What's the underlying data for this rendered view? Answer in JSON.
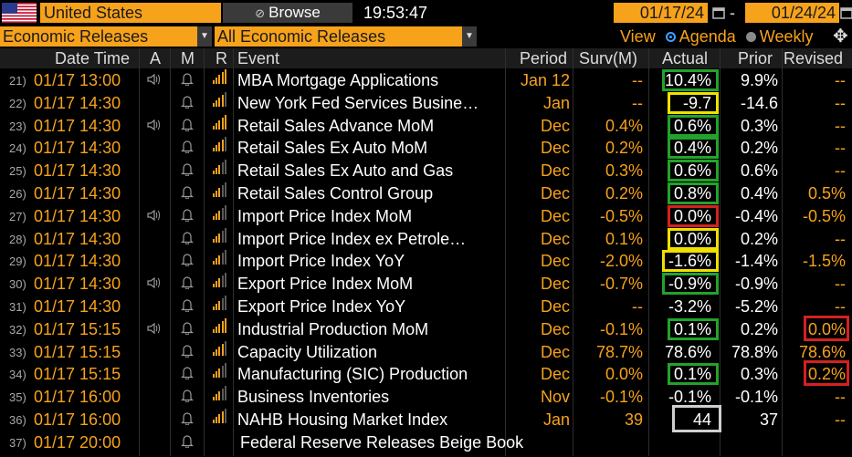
{
  "header": {
    "country": "United States",
    "browse_label": "Browse",
    "time": "19:53:47",
    "date_from": "01/17/24",
    "date_to": "01/24/24",
    "dash": "-",
    "filter_1": "Economic Releases",
    "filter_2": "All Economic Releases",
    "view_label": "View",
    "view_agenda": "Agenda",
    "view_weekly": "Weekly",
    "selected_view": "Agenda"
  },
  "columns": {
    "datetime": "Date Time",
    "a": "A",
    "m": "M",
    "r": "R",
    "event": "Event",
    "period": "Period",
    "survey": "Surv(M)",
    "actual": "Actual",
    "prior": "Prior",
    "revised": "Revised"
  },
  "colors": {
    "accent_orange": "#f7a21b",
    "box_green": "#21a32b",
    "box_yellow": "#f0e000",
    "box_red": "#d62020",
    "box_white": "#cfcfcf"
  },
  "rows": [
    {
      "num": "21)",
      "datetime": "01/17 13:00",
      "alert": true,
      "bars": 5,
      "event": "MBA Mortgage Applications",
      "period": "Jan 12",
      "survey": "--",
      "actual": "10.4%",
      "prior": "9.9%",
      "revised": "--",
      "actual_box": "green",
      "revised_box": ""
    },
    {
      "num": "22)",
      "datetime": "01/17 14:30",
      "alert": false,
      "bars": 4,
      "event": "New York Fed Services Busine…",
      "period": "Jan",
      "survey": "--",
      "actual": "-9.7",
      "prior": "-14.6",
      "revised": "--",
      "actual_box": "yellow",
      "revised_box": ""
    },
    {
      "num": "23)",
      "datetime": "01/17 14:30",
      "alert": true,
      "bars": 5,
      "event": "Retail Sales Advance MoM",
      "period": "Dec",
      "survey": "0.4%",
      "actual": "0.6%",
      "prior": "0.3%",
      "revised": "--",
      "actual_box": "green",
      "revised_box": ""
    },
    {
      "num": "24)",
      "datetime": "01/17 14:30",
      "alert": false,
      "bars": 4,
      "event": "Retail Sales Ex Auto MoM",
      "period": "Dec",
      "survey": "0.2%",
      "actual": "0.4%",
      "prior": "0.2%",
      "revised": "--",
      "actual_box": "green",
      "revised_box": ""
    },
    {
      "num": "25)",
      "datetime": "01/17 14:30",
      "alert": false,
      "bars": 3,
      "event": "Retail Sales Ex Auto and Gas",
      "period": "Dec",
      "survey": "0.3%",
      "actual": "0.6%",
      "prior": "0.6%",
      "revised": "--",
      "actual_box": "green",
      "revised_box": ""
    },
    {
      "num": "26)",
      "datetime": "01/17 14:30",
      "alert": false,
      "bars": 3,
      "event": "Retail Sales Control Group",
      "period": "Dec",
      "survey": "0.2%",
      "actual": "0.8%",
      "prior": "0.4%",
      "revised": "0.5%",
      "actual_box": "green",
      "revised_box": ""
    },
    {
      "num": "27)",
      "datetime": "01/17 14:30",
      "alert": true,
      "bars": 3,
      "event": "Import Price Index MoM",
      "period": "Dec",
      "survey": "-0.5%",
      "actual": "0.0%",
      "prior": "-0.4%",
      "revised": "-0.5%",
      "actual_box": "red",
      "revised_box": ""
    },
    {
      "num": "28)",
      "datetime": "01/17 14:30",
      "alert": false,
      "bars": 3,
      "event": "Import Price Index ex Petrole…",
      "period": "Dec",
      "survey": "0.1%",
      "actual": "0.0%",
      "prior": "0.2%",
      "revised": "--",
      "actual_box": "yellow",
      "revised_box": ""
    },
    {
      "num": "29)",
      "datetime": "01/17 14:30",
      "alert": false,
      "bars": 3,
      "event": "Import Price Index YoY",
      "period": "Dec",
      "survey": "-2.0%",
      "actual": "-1.6%",
      "prior": "-1.4%",
      "revised": "-1.5%",
      "actual_box": "yellow",
      "revised_box": ""
    },
    {
      "num": "30)",
      "datetime": "01/17 14:30",
      "alert": true,
      "bars": 3,
      "event": "Export Price Index MoM",
      "period": "Dec",
      "survey": "-0.7%",
      "actual": "-0.9%",
      "prior": "-0.9%",
      "revised": "--",
      "actual_box": "green",
      "revised_box": ""
    },
    {
      "num": "31)",
      "datetime": "01/17 14:30",
      "alert": false,
      "bars": 3,
      "event": "Export Price Index YoY",
      "period": "Dec",
      "survey": "--",
      "actual": "-3.2%",
      "prior": "-5.2%",
      "revised": "--",
      "actual_box": "",
      "revised_box": ""
    },
    {
      "num": "32)",
      "datetime": "01/17 15:15",
      "alert": true,
      "bars": 5,
      "event": "Industrial Production MoM",
      "period": "Dec",
      "survey": "-0.1%",
      "actual": "0.1%",
      "prior": "0.2%",
      "revised": "0.0%",
      "actual_box": "green",
      "revised_box": "red"
    },
    {
      "num": "33)",
      "datetime": "01/17 15:15",
      "alert": false,
      "bars": 4,
      "event": "Capacity Utilization",
      "period": "Dec",
      "survey": "78.7%",
      "actual": "78.6%",
      "prior": "78.8%",
      "revised": "78.6%",
      "actual_box": "",
      "revised_box": ""
    },
    {
      "num": "34)",
      "datetime": "01/17 15:15",
      "alert": false,
      "bars": 3,
      "event": "Manufacturing (SIC) Production",
      "period": "Dec",
      "survey": "0.0%",
      "actual": "0.1%",
      "prior": "0.3%",
      "revised": "0.2%",
      "actual_box": "green",
      "revised_box": "red"
    },
    {
      "num": "35)",
      "datetime": "01/17 16:00",
      "alert": false,
      "bars": 3,
      "event": "Business Inventories",
      "period": "Nov",
      "survey": "-0.1%",
      "actual": "-0.1%",
      "prior": "-0.1%",
      "revised": "--",
      "actual_box": "",
      "revised_box": ""
    },
    {
      "num": "36)",
      "datetime": "01/17 16:00",
      "alert": false,
      "bars": 4,
      "event": "NAHB Housing Market Index",
      "period": "Jan",
      "survey": "39",
      "actual": "44",
      "prior": "37",
      "revised": "--",
      "actual_box": "white",
      "revised_box": ""
    },
    {
      "num": "37)",
      "datetime": "01/17 20:00",
      "alert": false,
      "bars": 0,
      "event": "Federal Reserve Releases Beige Book",
      "period": "",
      "survey": "",
      "actual": "",
      "prior": "",
      "revised": "",
      "actual_box": "",
      "revised_box": ""
    }
  ]
}
